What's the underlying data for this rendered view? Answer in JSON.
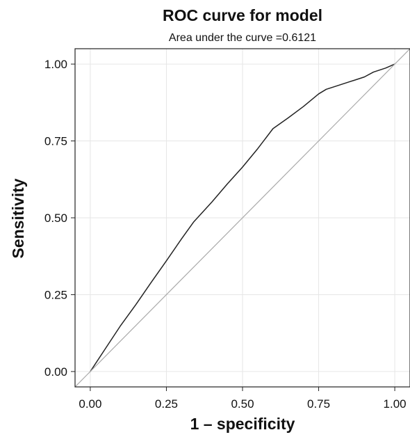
{
  "chart_data": {
    "type": "line",
    "title": "ROC curve for model",
    "subtitle": "Area under the curve =0.6121",
    "xlabel": "1 – specificity",
    "ylabel": "Sensitivity",
    "xlim": [
      -0.05,
      1.05
    ],
    "ylim": [
      -0.05,
      1.05
    ],
    "x_ticks": [
      0.0,
      0.25,
      0.5,
      0.75,
      1.0
    ],
    "x_tick_labels": [
      "0.00",
      "0.25",
      "0.50",
      "0.75",
      "1.00"
    ],
    "y_ticks": [
      0.0,
      0.25,
      0.5,
      0.75,
      1.0
    ],
    "y_tick_labels": [
      "0.00",
      "0.25",
      "0.50",
      "0.75",
      "1.00"
    ],
    "grid": true,
    "series": [
      {
        "color": "#222222",
        "points": [
          [
            0.0,
            0.0
          ],
          [
            0.05,
            0.075
          ],
          [
            0.1,
            0.15
          ],
          [
            0.15,
            0.218
          ],
          [
            0.2,
            0.29
          ],
          [
            0.25,
            0.36
          ],
          [
            0.3,
            0.432
          ],
          [
            0.34,
            0.487
          ],
          [
            0.4,
            0.552
          ],
          [
            0.45,
            0.61
          ],
          [
            0.5,
            0.665
          ],
          [
            0.55,
            0.725
          ],
          [
            0.6,
            0.79
          ],
          [
            0.65,
            0.825
          ],
          [
            0.7,
            0.862
          ],
          [
            0.75,
            0.903
          ],
          [
            0.775,
            0.918
          ],
          [
            0.8,
            0.926
          ],
          [
            0.85,
            0.942
          ],
          [
            0.9,
            0.958
          ],
          [
            0.93,
            0.974
          ],
          [
            0.97,
            0.987
          ],
          [
            1.0,
            1.0
          ]
        ]
      },
      {
        "color": "#aaaaaa",
        "points": [
          [
            -0.05,
            -0.05
          ],
          [
            1.05,
            1.05
          ]
        ]
      }
    ]
  },
  "colors": {
    "grid": "#e6e6e6",
    "frame": "#222222",
    "text": "#111111"
  }
}
